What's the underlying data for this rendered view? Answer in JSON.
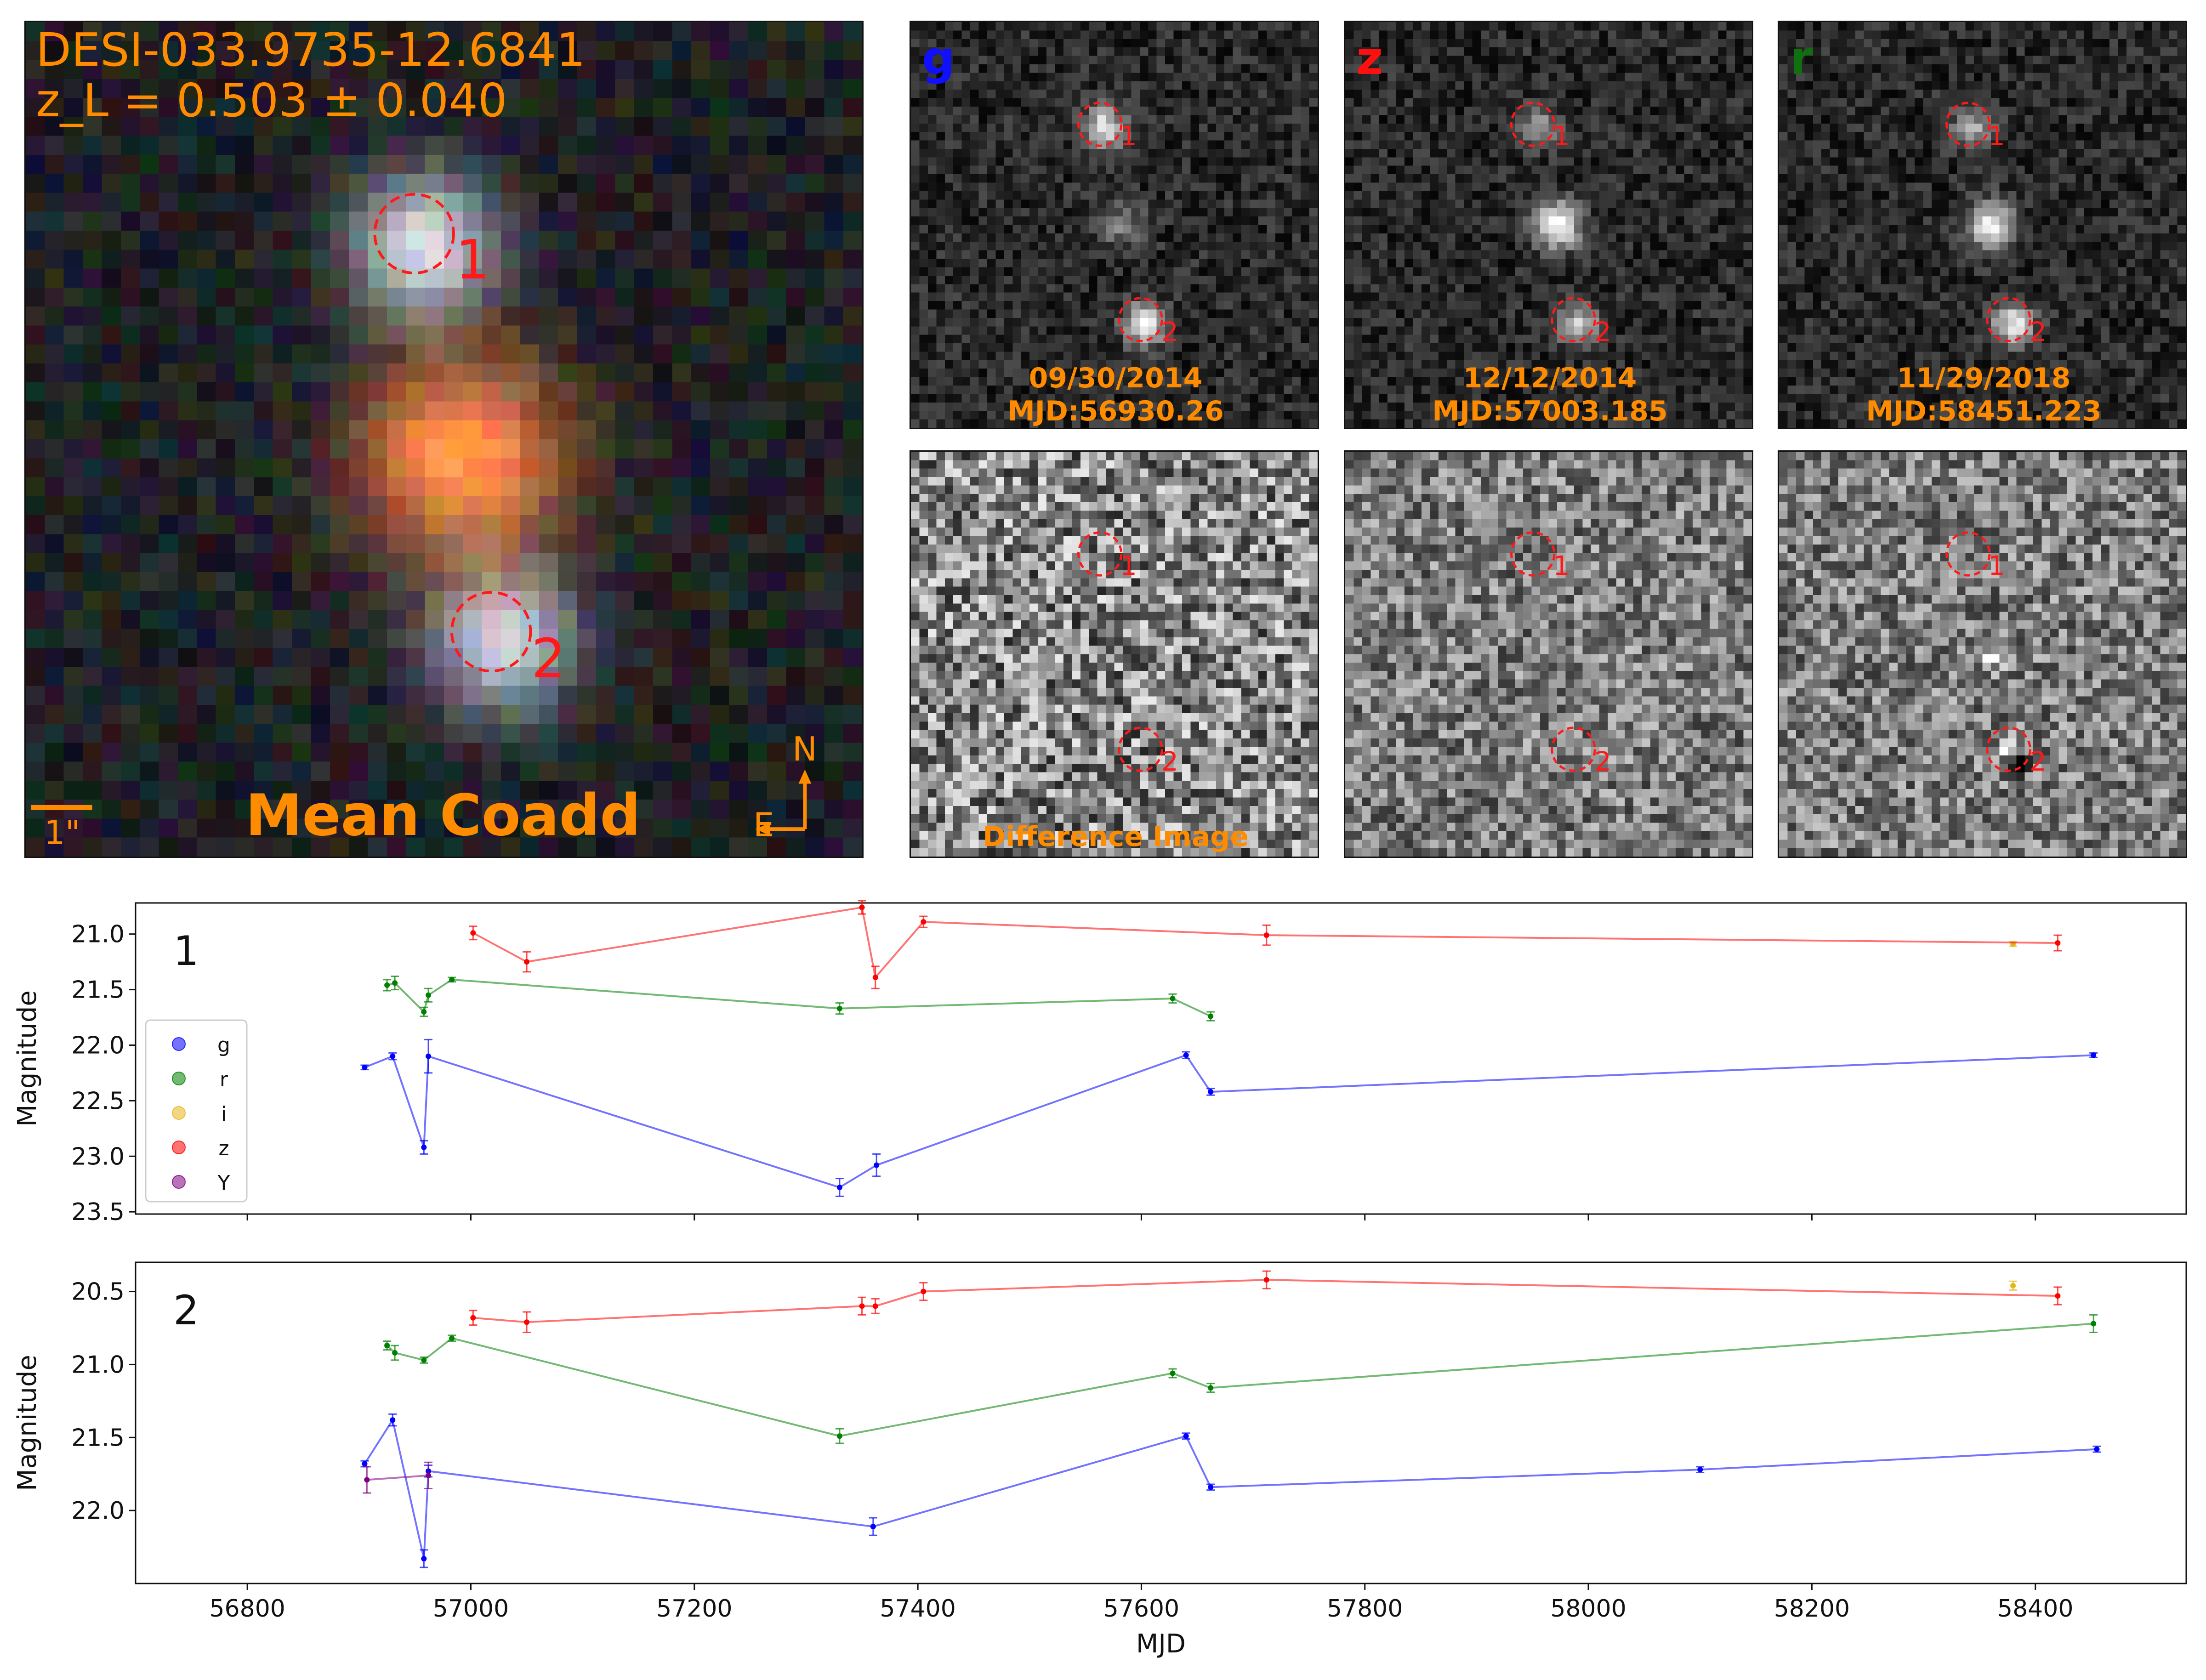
{
  "coadd": {
    "name": "DESI-033.9735-12.6841",
    "redshift": "z_L = 0.503 ± 0.040",
    "title": "Mean Coadd",
    "scale": "1\"",
    "north": "N",
    "east": "E",
    "markers": [
      "1",
      "2"
    ]
  },
  "epochs": [
    {
      "band": "g",
      "band_color": "#1010ff",
      "date": "09/30/2014",
      "mjd": "MJD:56930.26"
    },
    {
      "band": "z",
      "band_color": "#ff1010",
      "date": "12/12/2014",
      "mjd": "MJD:57003.185"
    },
    {
      "band": "r",
      "band_color": "#107010",
      "date": "11/29/2018",
      "mjd": "MJD:58451.223"
    }
  ],
  "difference_label": "Difference Image",
  "colors": {
    "orange": "#ff8c00",
    "marker_red": "#ff1a1a"
  },
  "chart_data": [
    {
      "type": "line",
      "panel_label": "1",
      "ylabel": "Magnitude",
      "xlim": [
        56700,
        58535
      ],
      "ylim": [
        23.52,
        20.72
      ],
      "yticks": [
        21.0,
        21.5,
        22.0,
        22.5,
        23.0,
        23.5
      ],
      "legend": {
        "placement": "center-left",
        "entries": [
          {
            "name": "g",
            "color": "#0000ff"
          },
          {
            "name": "r",
            "color": "#008000"
          },
          {
            "name": "i",
            "color": "#e5b61a"
          },
          {
            "name": "z",
            "color": "#ff0000"
          },
          {
            "name": "Y",
            "color": "#800080"
          }
        ]
      },
      "series": [
        {
          "name": "g",
          "color": "#0000ff",
          "points": [
            [
              56905,
              22.2,
              0.02
            ],
            [
              56930,
              22.1,
              0.03
            ],
            [
              56958,
              22.92,
              0.06
            ],
            [
              56962,
              22.1,
              0.15
            ],
            [
              57330,
              23.28,
              0.08
            ],
            [
              57363,
              23.08,
              0.1
            ],
            [
              57640,
              22.09,
              0.03
            ],
            [
              57662,
              22.42,
              0.03
            ],
            [
              58452,
              22.09,
              0.02
            ]
          ]
        },
        {
          "name": "r",
          "color": "#008000",
          "points": [
            [
              56925,
              21.46,
              0.05
            ],
            [
              56932,
              21.44,
              0.06
            ],
            [
              56958,
              21.7,
              0.04
            ],
            [
              56962,
              21.55,
              0.06
            ],
            [
              56983,
              21.41,
              0.02
            ],
            [
              57330,
              21.67,
              0.05
            ],
            [
              57628,
              21.58,
              0.04
            ],
            [
              57662,
              21.74,
              0.04
            ]
          ]
        },
        {
          "name": "i",
          "color": "#e5b61a",
          "points": [
            [
              58380,
              21.09,
              0.02
            ]
          ]
        },
        {
          "name": "z",
          "color": "#ff0000",
          "points": [
            [
              57002,
              20.99,
              0.06
            ],
            [
              57050,
              21.25,
              0.09
            ],
            [
              57350,
              20.76,
              0.06
            ],
            [
              57362,
              21.39,
              0.1
            ],
            [
              57405,
              20.89,
              0.05
            ],
            [
              57712,
              21.01,
              0.09
            ],
            [
              58420,
              21.08,
              0.07
            ]
          ]
        },
        {
          "name": "Y",
          "color": "#800080",
          "points": []
        }
      ]
    },
    {
      "type": "line",
      "panel_label": "2",
      "ylabel": "Magnitude",
      "xlabel": "MJD",
      "xlim": [
        56700,
        58535
      ],
      "ylim": [
        22.5,
        20.3
      ],
      "yticks": [
        20.5,
        21.0,
        21.5,
        22.0
      ],
      "xticks": [
        56800,
        57000,
        57200,
        57400,
        57600,
        57800,
        58000,
        58200,
        58400
      ],
      "series": [
        {
          "name": "g",
          "color": "#0000ff",
          "points": [
            [
              56905,
              21.68,
              0.02
            ],
            [
              56930,
              21.38,
              0.04
            ],
            [
              56958,
              22.33,
              0.06
            ],
            [
              56962,
              21.73,
              0.04
            ],
            [
              57360,
              22.11,
              0.06
            ],
            [
              57640,
              21.49,
              0.02
            ],
            [
              57662,
              21.84,
              0.02
            ],
            [
              58100,
              21.72,
              0.02
            ],
            [
              58455,
              21.58,
              0.02
            ]
          ]
        },
        {
          "name": "r",
          "color": "#008000",
          "points": [
            [
              56925,
              20.87,
              0.03
            ],
            [
              56932,
              20.92,
              0.05
            ],
            [
              56958,
              20.97,
              0.02
            ],
            [
              56983,
              20.82,
              0.02
            ],
            [
              57330,
              21.49,
              0.05
            ],
            [
              57628,
              21.06,
              0.03
            ],
            [
              57662,
              21.16,
              0.03
            ],
            [
              58452,
              20.72,
              0.06
            ]
          ]
        },
        {
          "name": "i",
          "color": "#e5b61a",
          "points": [
            [
              58380,
              20.46,
              0.03
            ]
          ]
        },
        {
          "name": "z",
          "color": "#ff0000",
          "points": [
            [
              57002,
              20.68,
              0.05
            ],
            [
              57050,
              20.71,
              0.07
            ],
            [
              57350,
              20.6,
              0.06
            ],
            [
              57362,
              20.6,
              0.05
            ],
            [
              57405,
              20.5,
              0.06
            ],
            [
              57712,
              20.42,
              0.06
            ],
            [
              58420,
              20.53,
              0.06
            ]
          ]
        },
        {
          "name": "Y",
          "color": "#800080",
          "points": [
            [
              56907,
              21.79,
              0.09
            ],
            [
              56962,
              21.76,
              0.09
            ]
          ]
        }
      ]
    }
  ]
}
